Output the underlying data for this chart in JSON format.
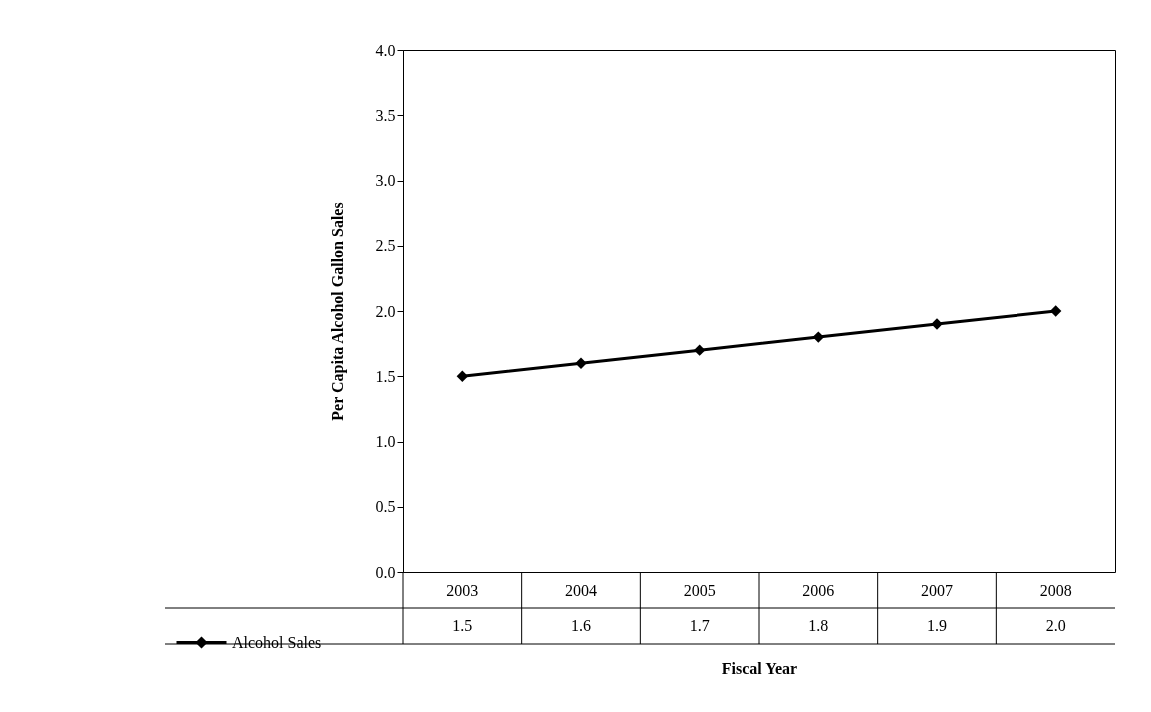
{
  "chart_data": {
    "type": "line",
    "xlabel": "Fiscal Year",
    "ylabel": "Per Capita Alcohol Gallon Sales",
    "categories": [
      "2003",
      "2004",
      "2005",
      "2006",
      "2007",
      "2008"
    ],
    "series": [
      {
        "name": "Alcohol Sales",
        "color": "#000000",
        "values": [
          1.5,
          1.6,
          1.7,
          1.8,
          1.9,
          2.0
        ],
        "value_labels": [
          "1.5",
          "1.6",
          "1.7",
          "1.8",
          "1.9",
          "2.0"
        ]
      }
    ],
    "ylim": [
      0,
      4
    ],
    "yticks": [
      {
        "value": 0,
        "label": "0.0"
      },
      {
        "value": 0.5,
        "label": "0.5"
      },
      {
        "value": 1,
        "label": "1.0"
      },
      {
        "value": 1.5,
        "label": "1.5"
      },
      {
        "value": 2,
        "label": "2.0"
      },
      {
        "value": 2.5,
        "label": "2.5"
      },
      {
        "value": 3,
        "label": "3.0"
      },
      {
        "value": 3.5,
        "label": "3.5"
      },
      {
        "value": 4,
        "label": "4.0"
      }
    ],
    "grid": false,
    "legend": "bottom left",
    "marker": "diamond",
    "line_style": "solid"
  }
}
